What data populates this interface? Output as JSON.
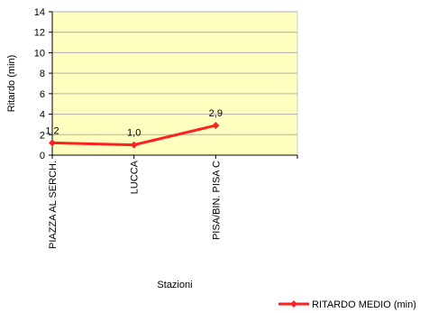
{
  "chart_data": {
    "type": "line",
    "categories": [
      "PIAZZA AL SERCH.",
      "LUCCA",
      "PISA/BIN. PISA C"
    ],
    "series": [
      {
        "name": "RITARDO MEDIO (min)",
        "values": [
          1.2,
          1.0,
          2.9
        ],
        "labels": [
          "1,2",
          "1,0",
          "2,9"
        ]
      }
    ],
    "xlabel": "Stazioni",
    "ylabel": "Ritardo (min)",
    "ylim": [
      0,
      14
    ],
    "yticks": [
      0,
      2,
      4,
      6,
      8,
      10,
      12,
      14
    ],
    "grid": true,
    "legend_position": "bottom-right",
    "colors": {
      "series": "#ff2020",
      "plot_background": "#ffffc0",
      "grid": "#b0b0b0"
    }
  }
}
